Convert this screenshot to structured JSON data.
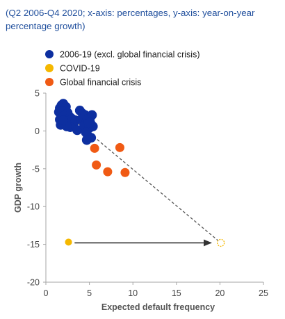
{
  "chart_data": {
    "type": "scatter",
    "subtitle": "(Q2 2006-Q4 2020; x-axis: percentages, y-axis: year-on-year percentage growth)",
    "xlabel": "Expected  default frequency",
    "ylabel": "GDP growth",
    "xlim": [
      0,
      25
    ],
    "ylim": [
      -20,
      5
    ],
    "xticks": [
      0,
      5,
      10,
      15,
      20,
      25
    ],
    "yticks": [
      5,
      0,
      -5,
      -10,
      -15,
      -20
    ],
    "grid": false,
    "legend_position": "top-left",
    "series": [
      {
        "name": "2006-19  (excl. global financial  crisis)",
        "color": "#0d2fa0",
        "points": [
          [
            1.6,
            3.0
          ],
          [
            1.8,
            3.4
          ],
          [
            2.0,
            3.6
          ],
          [
            2.3,
            3.2
          ],
          [
            1.5,
            2.5
          ],
          [
            1.9,
            2.6
          ],
          [
            2.5,
            2.4
          ],
          [
            2.1,
            2.0
          ],
          [
            1.6,
            1.5
          ],
          [
            1.9,
            1.2
          ],
          [
            2.3,
            1.0
          ],
          [
            2.8,
            1.8
          ],
          [
            3.0,
            1.6
          ],
          [
            3.4,
            1.4
          ],
          [
            3.2,
            0.6
          ],
          [
            2.8,
            0.5
          ],
          [
            3.6,
            0.1
          ],
          [
            2.4,
            0.6
          ],
          [
            1.7,
            0.8
          ],
          [
            3.9,
            2.7
          ],
          [
            4.2,
            2.3
          ],
          [
            4.5,
            2.1
          ],
          [
            4.1,
            1.5
          ],
          [
            4.7,
            1.3
          ],
          [
            4.4,
            0.7
          ],
          [
            4.9,
            1.1
          ],
          [
            5.1,
            1.8
          ],
          [
            5.3,
            2.1
          ],
          [
            5.0,
            0.4
          ],
          [
            5.4,
            0.6
          ],
          [
            4.6,
            -0.2
          ],
          [
            4.8,
            -0.6
          ],
          [
            5.2,
            -0.9
          ],
          [
            4.7,
            -1.2
          ],
          [
            5.1,
            1.1
          ],
          [
            2.0,
            1.4
          ]
        ]
      },
      {
        "name": "COVID-19",
        "color": "#f5b800",
        "points": [
          [
            2.6,
            -14.7
          ]
        ]
      },
      {
        "name": "Global financial  crisis",
        "color": "#f05a14",
        "points": [
          [
            5.6,
            -2.3
          ],
          [
            8.5,
            -2.2
          ],
          [
            5.8,
            -4.5
          ],
          [
            7.1,
            -5.4
          ],
          [
            9.1,
            -5.5
          ]
        ]
      }
    ],
    "annotations": [
      {
        "type": "dashed-line",
        "from": [
          1.6,
          3.0
        ],
        "to": [
          20.1,
          -14.8
        ],
        "color": "#555555"
      },
      {
        "type": "arrow",
        "from": [
          3.3,
          -14.8
        ],
        "to": [
          19.0,
          -14.8
        ],
        "color": "#333333"
      },
      {
        "type": "hollow-point",
        "at": [
          20.1,
          -14.8
        ],
        "color": "#f5b800"
      }
    ]
  }
}
